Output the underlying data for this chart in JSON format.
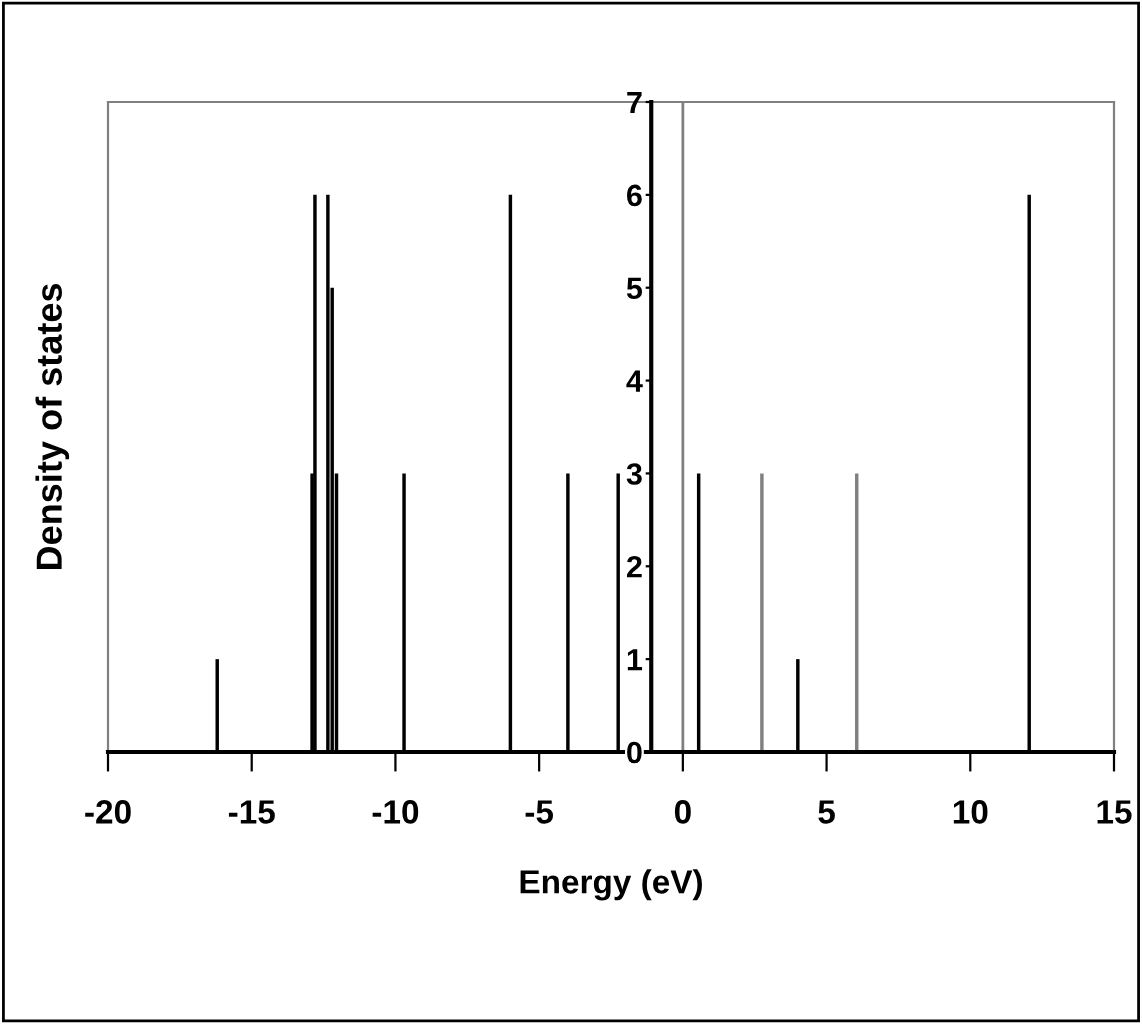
{
  "chart_data": {
    "type": "bar",
    "xlabel": "Energy (eV)",
    "ylabel": "Density of states",
    "x": [
      -16.2,
      -12.9,
      -12.8,
      -12.35,
      -12.2,
      -12.05,
      -9.7,
      -6.0,
      -4.0,
      -2.25,
      0.55,
      2.75,
      4.0,
      6.05,
      12.05
    ],
    "values": [
      1,
      3,
      6,
      6,
      5,
      3,
      3,
      6,
      3,
      3,
      3,
      3,
      1,
      3,
      6
    ],
    "colors": [
      "#000000",
      "#000000",
      "#000000",
      "#000000",
      "#000000",
      "#000000",
      "#000000",
      "#000000",
      "#000000",
      "#000000",
      "#000000",
      "#808080",
      "#000000",
      "#808080",
      "#000000"
    ],
    "xlim": [
      -20,
      15
    ],
    "xticks": [
      -20,
      -15,
      -10,
      -5,
      0,
      5,
      10,
      15
    ],
    "ylim": [
      0,
      7
    ],
    "yticks": [
      0,
      1,
      2,
      3,
      4,
      5,
      6,
      7
    ],
    "ref_lines": [
      {
        "axis": "x",
        "value": 0,
        "color": "#808080"
      }
    ],
    "grid": false,
    "legend": false
  }
}
